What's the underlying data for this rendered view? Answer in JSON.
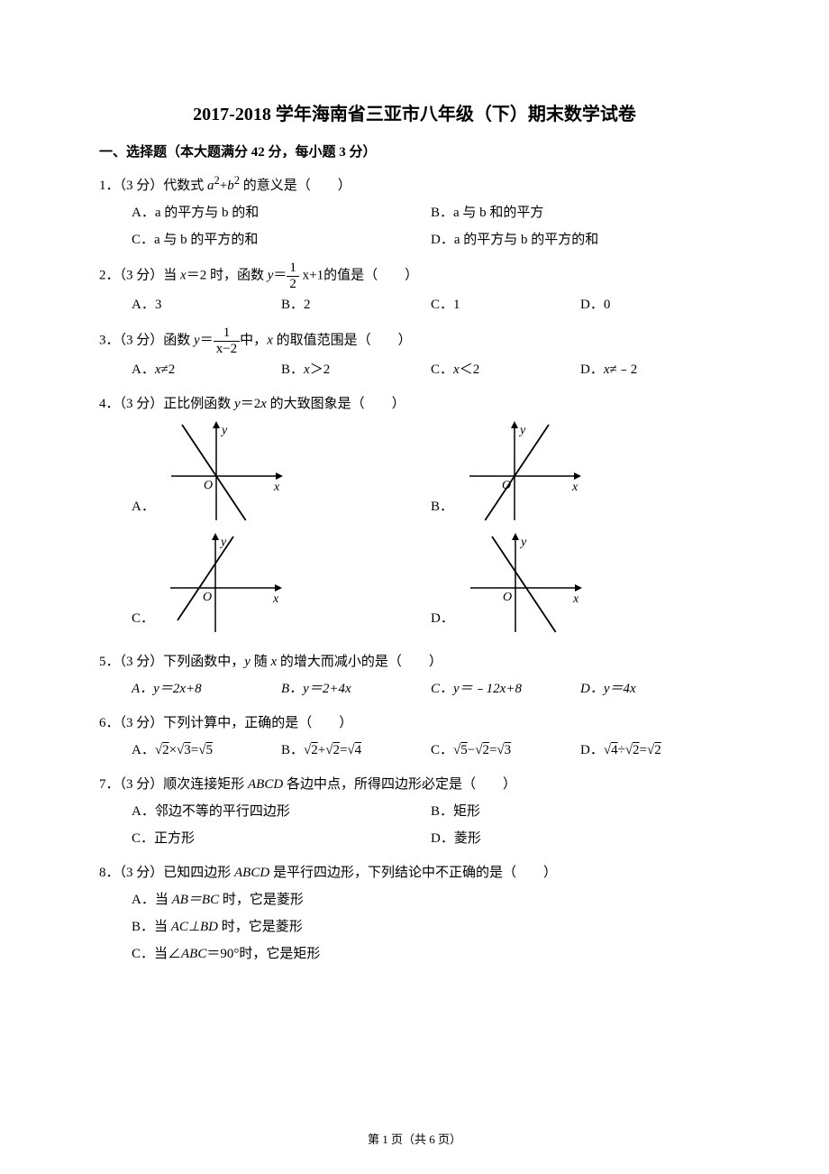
{
  "title": "2017-2018 学年海南省三亚市八年级（下）期末数学试卷",
  "section_header": "一、选择题（本大题满分 42 分，每小题 3 分）",
  "q1": {
    "stem_pre": "1．（3 分）代数式 ",
    "stem_mid": "a",
    "stem_sup1": "2",
    "stem_plus": "+",
    "stem_b": "b",
    "stem_sup2": "2",
    "stem_post": " 的意义是（　　）",
    "A": "A．a 的平方与 b 的和",
    "B": "B．a 与 b 和的平方",
    "C": "C．a 与 b 的平方的和",
    "D": "D．a 的平方与 b 的平方的和"
  },
  "q2": {
    "stem_pre": "2．（3 分）当 ",
    "x": "x",
    "eq": "＝2 时，函数 ",
    "y": "y",
    "eq2": "＝",
    "frac_num": "1",
    "frac_den": "2",
    "post_frac": " x+1",
    "stem_post": "的值是（　　）",
    "A": "A．3",
    "B": "B．2",
    "C": "C．1",
    "D": "D．0"
  },
  "q3": {
    "stem_pre": "3．（3 分）函数 ",
    "y": "y",
    "eq": "＝",
    "frac_num": "1",
    "frac_den": "x−2",
    "mid": "中，",
    "x": "x",
    "stem_post": " 的取值范围是（　　）",
    "A_pre": "A．",
    "A_x": "x",
    "A_post": "≠2",
    "B_pre": "B．",
    "B_x": "x",
    "B_post": "＞2",
    "C_pre": "C．",
    "C_x": "x",
    "C_post": "＜2",
    "D_pre": "D．",
    "D_x": "x",
    "D_post": "≠﹣2"
  },
  "q4": {
    "stem_pre": "4．（3 分）正比例函数 ",
    "y": "y",
    "eq": "＝2",
    "x": "x",
    "stem_post": " 的大致图象是（　　）",
    "A": "A．",
    "B": "B．",
    "C": "C．",
    "D": "D．",
    "axis_x": "x",
    "axis_y": "y",
    "origin": "O",
    "graph_colors": {
      "line": "#000000",
      "bg": "#ffffff"
    },
    "slopes": {
      "A": -1.5,
      "B": 1.5,
      "C": 1.5,
      "D": -1.5
    },
    "offsets": {
      "A": 0,
      "B": 0,
      "C": -18,
      "D": 12
    }
  },
  "q5": {
    "stem_pre": "5．（3 分）下列函数中，",
    "y": "y",
    "mid": " 随 ",
    "x": "x",
    "stem_post": " 的增大而减小的是（　　）",
    "A": "A．y＝2x+8",
    "B": "B．y＝2+4x",
    "C": "C．y＝﹣12x+8",
    "D": "D．y＝4x"
  },
  "q6": {
    "stem": "6．（3 分）下列计算中，正确的是（　　）",
    "A_pre": "A．",
    "A_l1": "2",
    "A_l2": "3",
    "A_r": "5",
    "A_op": "×",
    "B_pre": "B．",
    "B_l1": "2",
    "B_l2": "2",
    "B_r": "4",
    "B_op": "+",
    "C_pre": "C．",
    "C_l1": "5",
    "C_l2": "2",
    "C_r": "3",
    "C_op": "−",
    "D_pre": "D．",
    "D_l1": "4",
    "D_l2": "2",
    "D_r": "2",
    "D_op": "÷"
  },
  "q7": {
    "stem_pre": "7．（3 分）顺次连接矩形 ",
    "abcd": "ABCD",
    "stem_post": " 各边中点，所得四边形必定是（　　）",
    "A": "A．邻边不等的平行四边形",
    "B": "B．矩形",
    "C": "C．正方形",
    "D": "D．菱形"
  },
  "q8": {
    "stem_pre": "8．（3 分）已知四边形 ",
    "abcd": "ABCD",
    "stem_post": " 是平行四边形，下列结论中不正确的是（　　）",
    "A_pre": "A．当 ",
    "A_mid": "AB＝BC",
    "A_post": " 时，它是菱形",
    "B_pre": "B．当 ",
    "B_mid": "AC⊥BD",
    "B_post": " 时，它是菱形",
    "C_pre": "C．当∠",
    "C_mid": "ABC",
    "C_post": "＝90°时，它是矩形"
  },
  "footer": "第 1 页（共 6 页）"
}
